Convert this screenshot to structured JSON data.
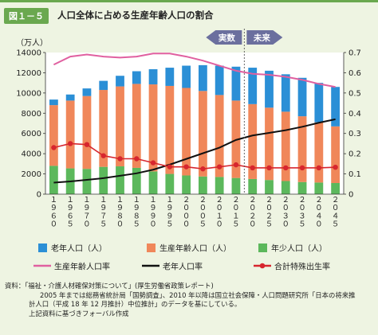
{
  "figure": {
    "label": "図１－５",
    "title": "人口全体に占める生産年齢人口の割合"
  },
  "chart_data": {
    "type": "bar",
    "stacked": true,
    "categories": [
      "1960",
      "1965",
      "1970",
      "1975",
      "1980",
      "1985",
      "1990",
      "1995",
      "2000",
      "2005",
      "2010",
      "2015",
      "2020",
      "2025",
      "2030",
      "2035",
      "2040",
      "2045"
    ],
    "category_labels": [
      "１９６０",
      "１９６５",
      "１９７０",
      "１９７５",
      "１９８０",
      "１９８５",
      "１９９０",
      "１９９５",
      "２０００",
      "２００５",
      "２０１０",
      "２０１５",
      "２０２０",
      "２０２５",
      "２０３０",
      "２０３５",
      "２０４０",
      "２０４５"
    ],
    "y_left": {
      "label": "（万人）",
      "min": 0,
      "max": 14000,
      "ticks": [
        0,
        2000,
        4000,
        6000,
        8000,
        10000,
        12000,
        14000
      ]
    },
    "y_right": {
      "min": 0,
      "max": 0.7,
      "ticks": [
        "0",
        "0.1",
        "0.2",
        "0.3",
        "0.4",
        "0.5",
        "0.6",
        "0.7"
      ]
    },
    "series": [
      {
        "name": "年少人口（人）",
        "kind": "bar",
        "color": "#5cb85c",
        "values": [
          2800,
          2550,
          2500,
          2700,
          2750,
          2600,
          2250,
          2000,
          1850,
          1750,
          1700,
          1600,
          1500,
          1400,
          1300,
          1200,
          1150,
          1100
        ]
      },
      {
        "name": "生産年齢人口（人）",
        "kind": "bar",
        "color": "#f0875a",
        "values": [
          6000,
          6700,
          7200,
          7600,
          7900,
          8300,
          8600,
          8700,
          8650,
          8450,
          8100,
          7650,
          7400,
          7150,
          6850,
          6500,
          5950,
          5600
        ]
      },
      {
        "name": "老年人口（人）",
        "kind": "bar",
        "color": "#2b8fd6",
        "values": [
          550,
          600,
          750,
          900,
          1050,
          1250,
          1500,
          1800,
          2200,
          2550,
          2900,
          3350,
          3600,
          3650,
          3700,
          3800,
          3900,
          3900
        ]
      },
      {
        "name": "生産年齢人口率",
        "kind": "line",
        "axis": "right",
        "color": "#e060a0",
        "values": [
          0.64,
          0.68,
          0.69,
          0.68,
          0.675,
          0.68,
          0.695,
          0.695,
          0.68,
          0.66,
          0.635,
          0.61,
          0.595,
          0.59,
          0.58,
          0.565,
          0.545,
          0.53
        ]
      },
      {
        "name": "老年人口率",
        "kind": "line",
        "axis": "right",
        "color": "#111111",
        "values": [
          0.057,
          0.063,
          0.071,
          0.079,
          0.091,
          0.103,
          0.121,
          0.146,
          0.174,
          0.202,
          0.23,
          0.268,
          0.29,
          0.303,
          0.316,
          0.333,
          0.353,
          0.37
        ]
      },
      {
        "name": "合計特殊出生率",
        "kind": "line",
        "axis": "right",
        "color": "#d7262e",
        "markers": true,
        "values": [
          0.23,
          0.25,
          0.245,
          0.19,
          0.175,
          0.175,
          0.155,
          0.135,
          0.135,
          0.125,
          0.135,
          0.145,
          0.13,
          0.13,
          0.13,
          0.13,
          0.13,
          0.133
        ]
      }
    ],
    "annotations": {
      "actual_label": "実数",
      "forecast_label": "未来"
    },
    "legend": [
      {
        "name": "老年人口（人）",
        "symbol": "box",
        "color": "#2b8fd6"
      },
      {
        "name": "生産年齢人口（人）",
        "symbol": "box",
        "color": "#f0875a"
      },
      {
        "name": "年少人口（人）",
        "symbol": "box",
        "color": "#5cb85c"
      },
      {
        "name": "生産年齢人口率",
        "symbol": "line",
        "color": "#e060a0"
      },
      {
        "name": "老年人口率",
        "symbol": "line",
        "color": "#111111"
      },
      {
        "name": "合計特殊出生率",
        "symbol": "marker-line",
        "color": "#d7262e"
      }
    ],
    "grid": false,
    "legend_position": "bottom"
  },
  "source": {
    "line1": "資料：「福祉・介護人材確保対策について」(厚生労働省政策レポート)",
    "line2": "2005 年までは総務省統計局「国勢調査」、2010 年以降は国立社会保障・人口問題研究所「日本の将来推",
    "line3": "計人口（平成 18 年 12 月推計）中位推計」のデータを基にしている。",
    "line4": "上記資料に基づきフォーバル作成"
  }
}
